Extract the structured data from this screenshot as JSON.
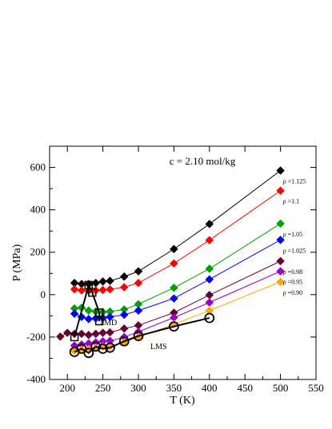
{
  "chart_data": {
    "type": "line",
    "annotation": "c = 2.10 mol/kg",
    "xlabel": "T (K)",
    "ylabel": "P (MPa)",
    "xlim": [
      175,
      550
    ],
    "ylim": [
      -400,
      700
    ],
    "xticks": [
      200,
      250,
      300,
      350,
      400,
      450,
      500,
      550
    ],
    "yticks": [
      -400,
      -200,
      0,
      200,
      400,
      600
    ],
    "grid": false,
    "series": [
      {
        "name": "ρ =1.125",
        "color": "#000000",
        "marker": "diamond",
        "x": [
          210,
          220,
          230,
          240,
          250,
          260,
          280,
          300,
          350,
          400,
          500
        ],
        "y": [
          55,
          50,
          50,
          55,
          62,
          65,
          85,
          110,
          215,
          333,
          585
        ]
      },
      {
        "name": "ρ =1.1",
        "color": "#ff0000",
        "marker": "diamond",
        "x": [
          210,
          220,
          230,
          240,
          250,
          260,
          280,
          300,
          350,
          400,
          500
        ],
        "y": [
          25,
          20,
          18,
          20,
          22,
          25,
          35,
          55,
          147,
          257,
          490
        ]
      },
      {
        "name": "ρ =1.05",
        "color": "#00a000",
        "marker": "diamond",
        "x": [
          210,
          220,
          230,
          240,
          250,
          260,
          280,
          300,
          350,
          400,
          500
        ],
        "y": [
          -65,
          -62,
          -75,
          -80,
          -82,
          -80,
          -70,
          -45,
          32,
          122,
          335
        ]
      },
      {
        "name": "ρ =1.025",
        "color": "#0000ff",
        "marker": "diamond",
        "x": [
          210,
          220,
          230,
          240,
          250,
          260,
          280,
          300,
          350,
          400,
          500
        ],
        "y": [
          -90,
          -105,
          -115,
          -112,
          -110,
          -105,
          -95,
          -75,
          -18,
          72,
          258
        ]
      },
      {
        "name": "ρ =0.98",
        "color": "#660033",
        "marker": "diamond",
        "x": [
          190,
          200,
          210,
          220,
          230,
          240,
          250,
          260,
          280,
          300,
          350,
          400,
          500
        ],
        "y": [
          -198,
          -180,
          -185,
          -185,
          -190,
          -185,
          -180,
          -178,
          -160,
          -145,
          -85,
          -2,
          158
        ]
      },
      {
        "name": "ρ =0.95",
        "color": "#9900cc",
        "marker": "diamond",
        "x": [
          210,
          220,
          230,
          240,
          250,
          260,
          280,
          300,
          350,
          400,
          500
        ],
        "y": [
          -240,
          -235,
          -230,
          -225,
          -220,
          -218,
          -200,
          -175,
          -108,
          -37,
          110
        ]
      },
      {
        "name": "ρ =0.90",
        "color": "#ffa500",
        "marker": "diamond",
        "x": [
          210,
          220,
          230,
          240,
          250,
          260,
          280,
          300,
          350,
          400,
          500
        ],
        "y": [
          -265,
          -260,
          -258,
          -250,
          -245,
          -245,
          -225,
          -200,
          -140,
          -75,
          60
        ]
      }
    ],
    "tmd": {
      "label": "TMD",
      "x": [
        210,
        230,
        235,
        245,
        245
      ],
      "y": [
        -200,
        45,
        10,
        -85,
        -125
      ]
    },
    "lms": {
      "label": "LMS",
      "x": [
        210,
        220,
        230,
        240,
        250,
        260,
        280,
        300,
        350,
        400
      ],
      "y": [
        -270,
        -255,
        -275,
        -245,
        -255,
        -250,
        -220,
        -195,
        -150,
        -110
      ]
    }
  }
}
